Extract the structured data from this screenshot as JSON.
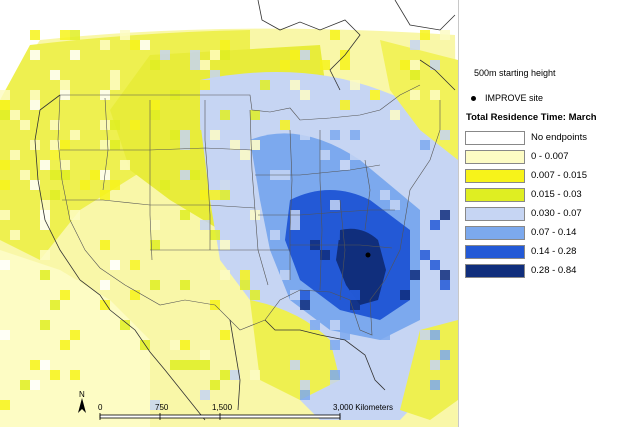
{
  "legend": {
    "subtitle": "500m starting height",
    "site_label": "IMPROVE site",
    "title": "Total Residence Time: March",
    "classes": [
      {
        "label": "No endpoints",
        "color": "#ffffff"
      },
      {
        "label": "0 - 0.007",
        "color": "#fdfcc4"
      },
      {
        "label": "0.007 - 0.015",
        "color": "#f7f31a"
      },
      {
        "label": "0.015 - 0.03",
        "color": "#dfee22"
      },
      {
        "label": "0.030 - 0.07",
        "color": "#c6d5f3"
      },
      {
        "label": "0.07 - 0.14",
        "color": "#7ca9ee"
      },
      {
        "label": "0.14 - 0.28",
        "color": "#2359d6"
      },
      {
        "label": "0.28 - 0.84",
        "color": "#102e7c"
      }
    ]
  },
  "scale_bar": {
    "north": "N",
    "ticks": [
      "0",
      "750",
      "1,500",
      "3,000 Kilometers"
    ]
  }
}
